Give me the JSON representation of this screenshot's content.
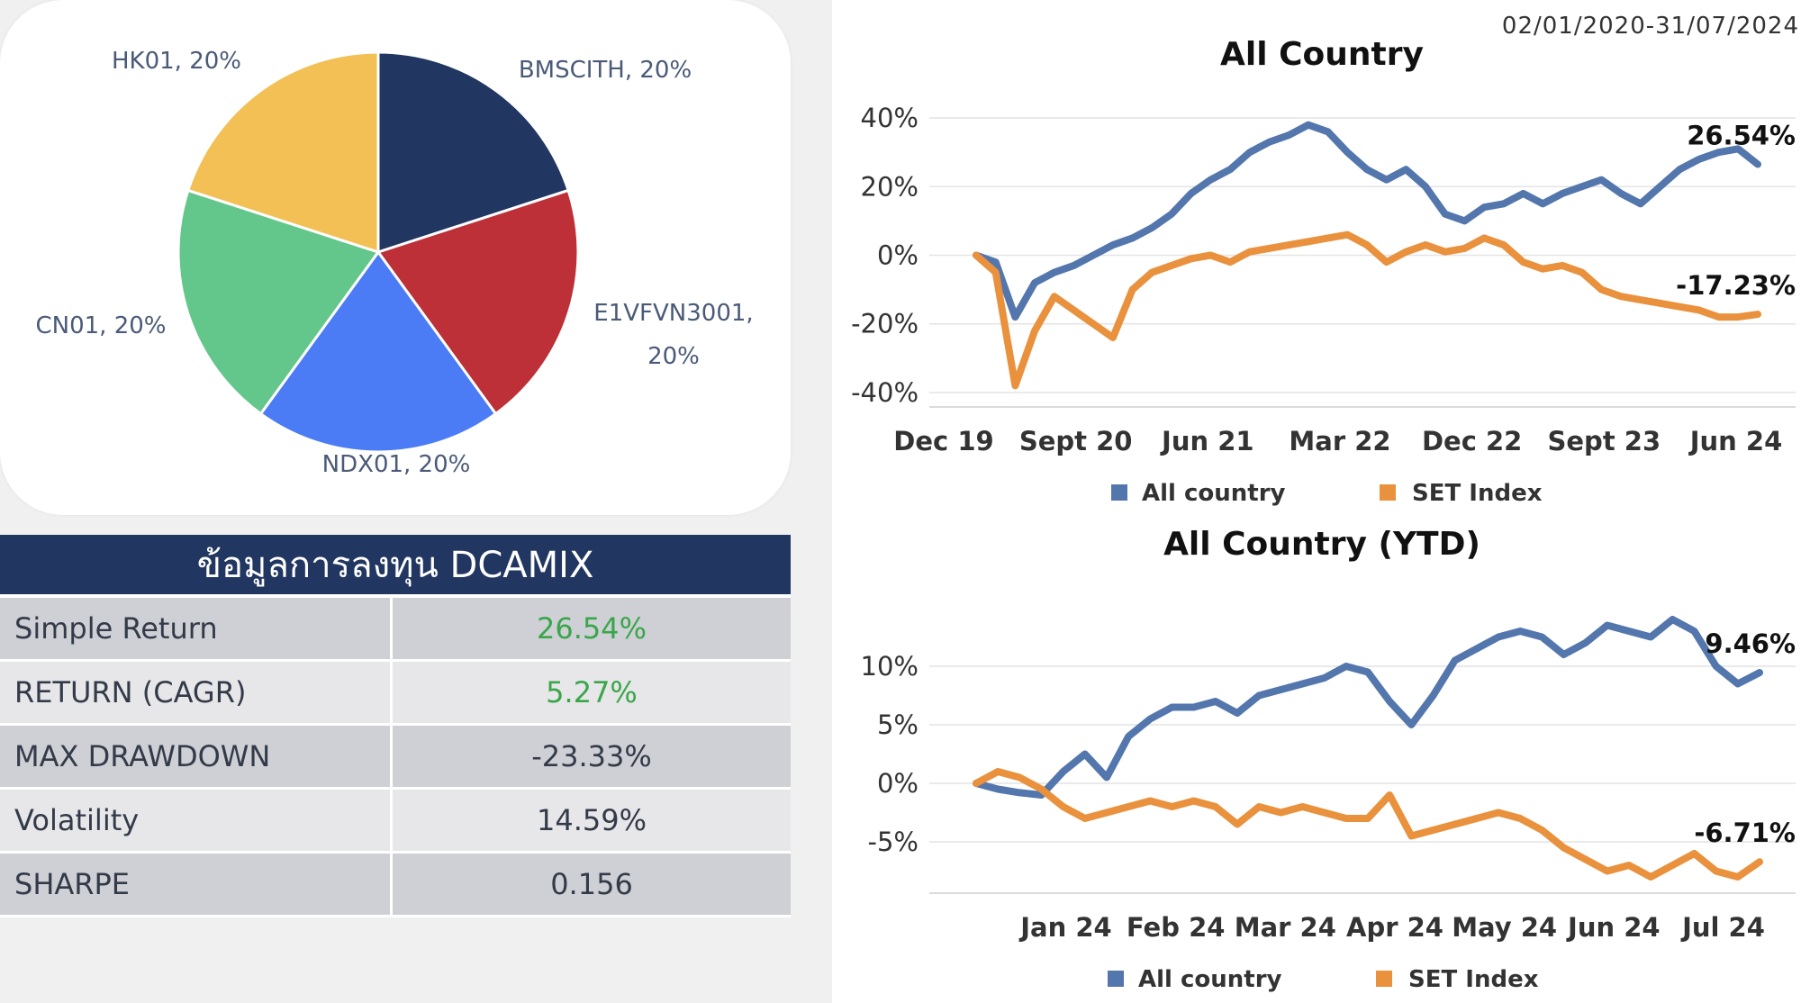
{
  "colors": {
    "navy": "#213660",
    "red": "#bd3038",
    "blue": "#4b7bf5",
    "green": "#63c78b",
    "yellow": "#f2c055",
    "all_country": "#5376ad",
    "set_index": "#e9913c",
    "positive": "#3aa64a"
  },
  "chart_data": [
    {
      "type": "pie",
      "slices": [
        {
          "label": "BMSCITH, 20%",
          "name": "BMSCITH",
          "value": 20,
          "color": "#213660"
        },
        {
          "label": "E1VFVN3001, 20%",
          "name": "E1VFVN3001",
          "value": 20,
          "color": "#bd3038"
        },
        {
          "label": "NDX01, 20%",
          "name": "NDX01",
          "value": 20,
          "color": "#4b7bf5"
        },
        {
          "label": "CN01, 20%",
          "name": "CN01",
          "value": 20,
          "color": "#63c78b"
        },
        {
          "label": "HK01, 20%",
          "name": "HK01",
          "value": 20,
          "color": "#f2c055"
        }
      ]
    },
    {
      "type": "line",
      "title": "All Country",
      "subtitle": "02/01/2020-31/07/2024",
      "ylim": [
        -45,
        45
      ],
      "yticks": [
        "40%",
        "20%",
        "0%",
        "-20%",
        "-40%"
      ],
      "xticks": [
        "Dec 19",
        "Sept 20",
        "Jun 21",
        "Mar 22",
        "Dec 22",
        "Sept 23",
        "Jun 24"
      ],
      "grid": true,
      "legend_position": "bottom",
      "series": [
        {
          "name": "All country",
          "end_label": "26.54%",
          "values": [
            0,
            -2,
            -18,
            -8,
            -5,
            -3,
            0,
            3,
            5,
            8,
            12,
            18,
            22,
            25,
            30,
            33,
            35,
            38,
            36,
            30,
            25,
            22,
            25,
            20,
            12,
            10,
            14,
            15,
            18,
            15,
            18,
            20,
            22,
            18,
            15,
            20,
            25,
            28,
            30,
            31,
            26.5
          ]
        },
        {
          "name": "SET Index",
          "end_label": "-17.23%",
          "values": [
            0,
            -5,
            -38,
            -22,
            -12,
            -16,
            -20,
            -24,
            -10,
            -5,
            -3,
            -1,
            0,
            -2,
            1,
            2,
            3,
            4,
            5,
            6,
            3,
            -2,
            1,
            3,
            1,
            2,
            5,
            3,
            -2,
            -4,
            -3,
            -5,
            -10,
            -12,
            -13,
            -14,
            -15,
            -16,
            -18,
            -18,
            -17.2
          ]
        }
      ]
    },
    {
      "type": "line",
      "title": "All Country (YTD)",
      "ylim": [
        -10,
        15
      ],
      "yticks": [
        "10%",
        "5%",
        "0%",
        "-5%"
      ],
      "xticks": [
        "Jan 24",
        "Feb 24",
        "Mar 24",
        "Apr 24",
        "May 24",
        "Jun 24",
        "Jul 24"
      ],
      "grid": true,
      "legend_position": "bottom",
      "series": [
        {
          "name": "All country",
          "end_label": "9.46%",
          "values": [
            0,
            -0.5,
            -0.8,
            -1.0,
            1.0,
            2.5,
            0.5,
            4.0,
            5.5,
            6.5,
            6.5,
            7.0,
            6.0,
            7.5,
            8.0,
            8.5,
            9.0,
            10.0,
            9.5,
            7.0,
            5.0,
            7.5,
            10.5,
            11.5,
            12.5,
            13.0,
            12.5,
            11.0,
            12.0,
            13.5,
            13.0,
            12.5,
            14.0,
            13.0,
            10.0,
            8.5,
            9.46
          ]
        },
        {
          "name": "SET Index",
          "end_label": "-6.71%",
          "values": [
            0,
            1.0,
            0.5,
            -0.5,
            -2.0,
            -3.0,
            -2.5,
            -2.0,
            -1.5,
            -2.0,
            -1.5,
            -2.0,
            -3.5,
            -2.0,
            -2.5,
            -2.0,
            -2.5,
            -3.0,
            -3.0,
            -1.0,
            -4.5,
            -4.0,
            -3.5,
            -3.0,
            -2.5,
            -3.0,
            -4.0,
            -5.5,
            -6.5,
            -7.5,
            -7.0,
            -8.0,
            -7.0,
            -6.0,
            -7.5,
            -8.0,
            -6.71
          ]
        }
      ]
    }
  ],
  "table": {
    "title": "ข้อมูลการลงทุน DCAMIX",
    "rows": [
      {
        "label": "Simple Return",
        "value": "26.54%",
        "positive": true
      },
      {
        "label": "RETURN (CAGR)",
        "value": "5.27%",
        "positive": true
      },
      {
        "label": "MAX DRAWDOWN",
        "value": "-23.33%",
        "positive": false
      },
      {
        "label": "Volatility",
        "value": "14.59%",
        "positive": false
      },
      {
        "label": "SHARPE",
        "value": "0.156",
        "positive": false
      }
    ]
  },
  "legend": {
    "all_country": "All country",
    "set_index": "SET Index"
  }
}
